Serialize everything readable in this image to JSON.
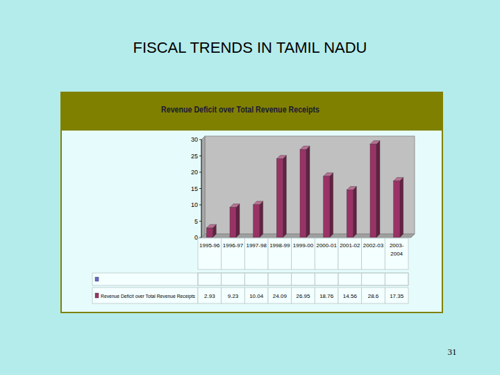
{
  "header": {
    "title": "FISCAL TRENDS IN TAMIL NADU"
  },
  "footer": {
    "page_number": "31"
  },
  "chart_data": {
    "type": "bar",
    "title": "Revenue Deficit over Total Revenue Receipts",
    "categories": [
      "1995-96",
      "1996-97",
      "1997-98",
      "1998-99",
      "1999-00",
      "2000-01",
      "2001-02",
      "2002-03",
      "2003-2004"
    ],
    "series": [
      {
        "name": "Revenue Deficit over Total Revenue Receipts",
        "color": "#993366",
        "values": [
          2.93,
          9.23,
          10.04,
          24.09,
          26.95,
          18.76,
          14.56,
          28.6,
          17.35
        ]
      }
    ],
    "ylim": [
      0,
      30
    ],
    "yticks": [
      0,
      5,
      10,
      15,
      20,
      25,
      30
    ],
    "grid": false
  }
}
